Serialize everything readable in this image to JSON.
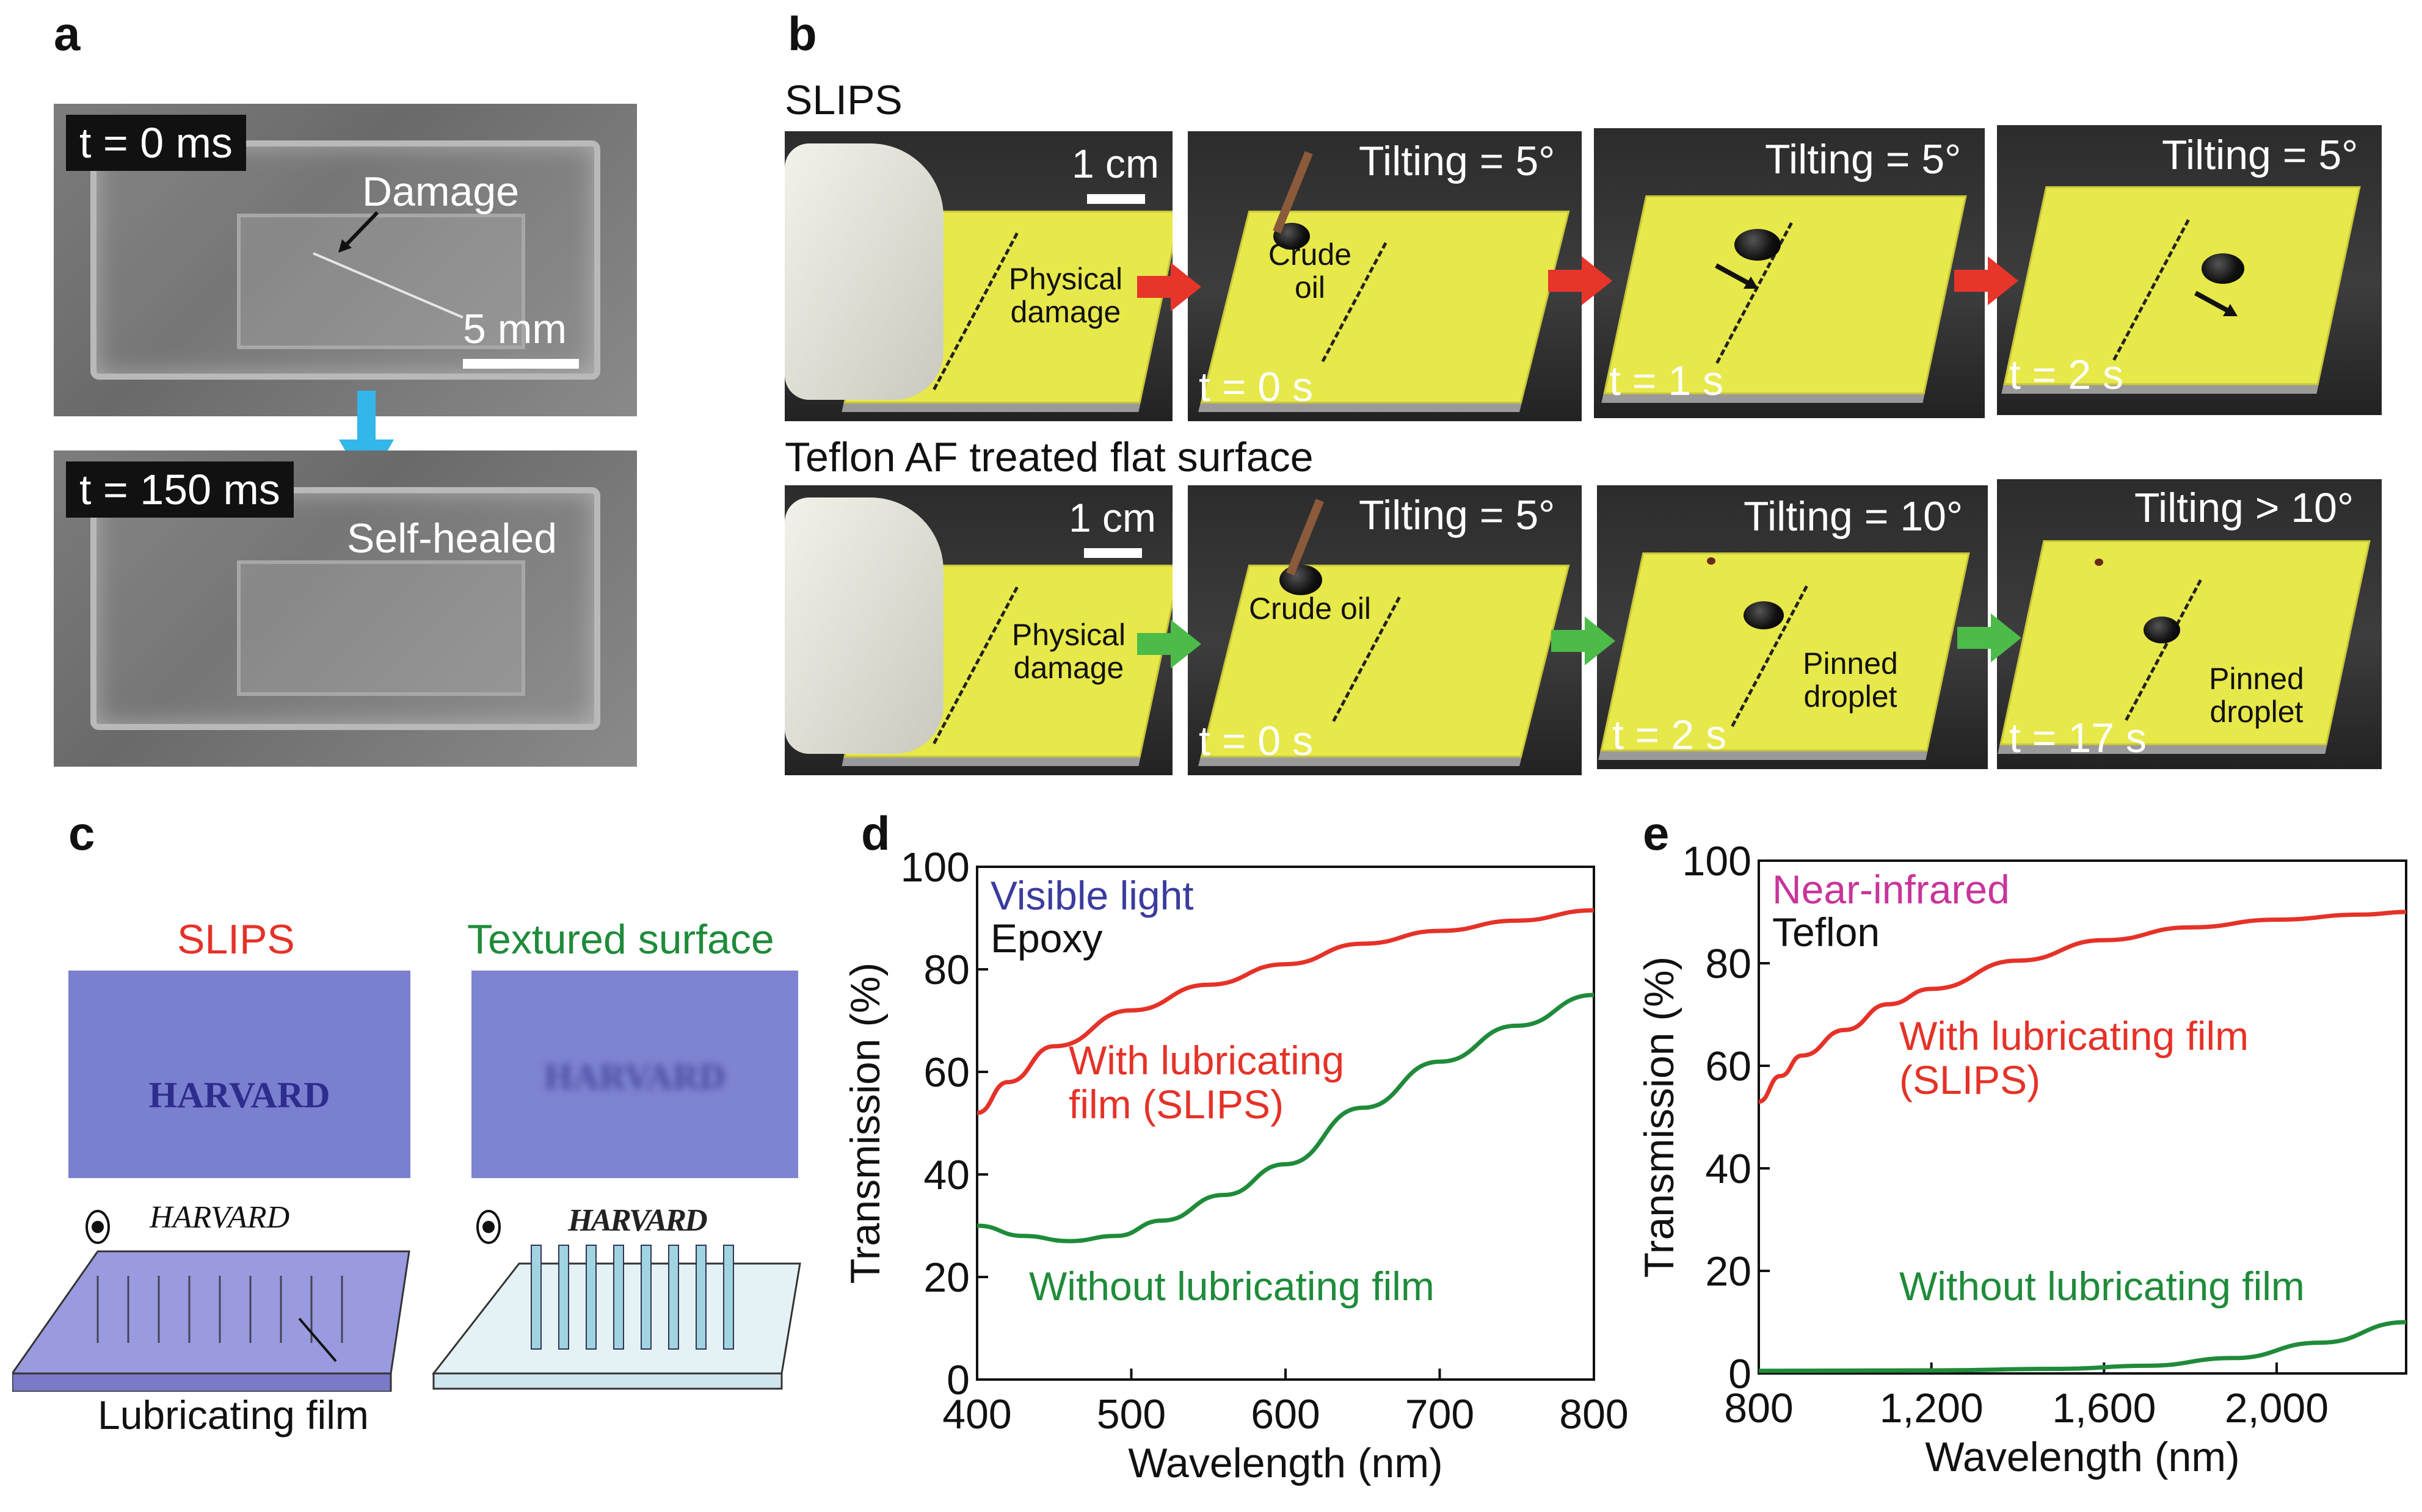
{
  "panels": {
    "a": {
      "label": "a",
      "t0": "t = 0 ms",
      "damage": "Damage",
      "scale": "5 mm",
      "t150": "t = 150 ms",
      "healed": "Self-healed"
    },
    "b": {
      "label": "b",
      "row1_title": "SLIPS",
      "row2_title": "Teflon AF treated flat surface",
      "scale": "1 cm",
      "physical_damage": "Physical damage",
      "row1": {
        "crude_oil": "Crude oil",
        "frames": [
          {
            "tilt": "Tilting = 5°",
            "time": "t = 0 s"
          },
          {
            "tilt": "Tilting = 5°",
            "time": "t = 1 s"
          },
          {
            "tilt": "Tilting = 5°",
            "time": "t = 2 s"
          }
        ]
      },
      "row2": {
        "crude_oil": "Crude oil",
        "pinned": "Pinned droplet",
        "frames": [
          {
            "tilt": "Tilting = 5°",
            "time": "t = 0 s"
          },
          {
            "tilt": "Tilting = 10°",
            "time": "t = 2 s"
          },
          {
            "tilt": "Tilting > 10°",
            "time": "t = 17 s"
          }
        ]
      }
    },
    "c": {
      "label": "c",
      "slips": "SLIPS",
      "textured": "Textured surface",
      "word": "HARVARD",
      "film": "Lubricating film"
    }
  },
  "colors": {
    "red": "#e53228",
    "green": "#1f8b3a",
    "blue": "#3b3c9e",
    "magenta": "#c8359a",
    "arrow_red": "#e8352a",
    "arrow_green": "#4cbb48",
    "arrow_blue": "#33b6ea"
  },
  "chart_data": [
    {
      "panel": "d",
      "type": "line",
      "legend_title": "Visible light",
      "legend_sub": "Epoxy",
      "xlabel": "Wavelength (nm)",
      "ylabel": "Transmission (%)",
      "xlim": [
        400,
        800
      ],
      "ylim": [
        0,
        100
      ],
      "xticks": [
        400,
        500,
        600,
        700,
        800
      ],
      "xtick_labels": [
        "400",
        "500",
        "600",
        "700",
        "800"
      ],
      "yticks": [
        0,
        20,
        40,
        60,
        80,
        100
      ],
      "ytick_labels": [
        "0",
        "20",
        "40",
        "60",
        "80",
        "100"
      ],
      "series": [
        {
          "name": "With lubricating film (SLIPS)",
          "label_lines": [
            "With lubricating",
            "film (SLIPS)"
          ],
          "color": "#e53228",
          "x": [
            400,
            420,
            450,
            500,
            550,
            600,
            650,
            700,
            750,
            800
          ],
          "y": [
            52,
            58,
            65,
            72,
            77,
            81,
            85,
            87.5,
            89.5,
            91.5
          ]
        },
        {
          "name": "Without lubricating film",
          "label_lines": [
            "Without lubricating film"
          ],
          "color": "#1f8b3a",
          "x": [
            400,
            430,
            460,
            490,
            520,
            560,
            600,
            650,
            700,
            750,
            800
          ],
          "y": [
            30,
            28,
            27,
            28,
            31,
            36,
            42,
            53,
            62,
            69,
            75
          ]
        }
      ]
    },
    {
      "panel": "e",
      "type": "line",
      "legend_title": "Near-infrared",
      "legend_sub": "Teflon",
      "xlabel": "Wavelength (nm)",
      "ylabel": "Transmission (%)",
      "xlim": [
        800,
        2300
      ],
      "ylim": [
        0,
        100
      ],
      "xticks": [
        800,
        1200,
        1600,
        2000
      ],
      "xtick_labels": [
        "800",
        "1,200",
        "1,600",
        "2,000"
      ],
      "yticks": [
        0,
        20,
        40,
        60,
        80,
        100
      ],
      "ytick_labels": [
        "0",
        "20",
        "40",
        "60",
        "80",
        "100"
      ],
      "series": [
        {
          "name": "With lubricating film (SLIPS)",
          "label_lines": [
            "With lubricating film",
            "(SLIPS)"
          ],
          "color": "#e53228",
          "x": [
            800,
            850,
            900,
            1000,
            1100,
            1200,
            1400,
            1600,
            1800,
            2000,
            2200,
            2300
          ],
          "y": [
            53,
            58,
            62,
            67,
            72,
            75,
            80.5,
            84.5,
            87,
            88.5,
            89.5,
            90
          ]
        },
        {
          "name": "Without lubricating film",
          "label_lines": [
            "Without lubricating film"
          ],
          "color": "#1f8b3a",
          "x": [
            800,
            1200,
            1500,
            1700,
            1900,
            2100,
            2300
          ],
          "y": [
            0.5,
            0.6,
            0.9,
            1.5,
            3,
            6,
            10
          ]
        }
      ]
    }
  ]
}
